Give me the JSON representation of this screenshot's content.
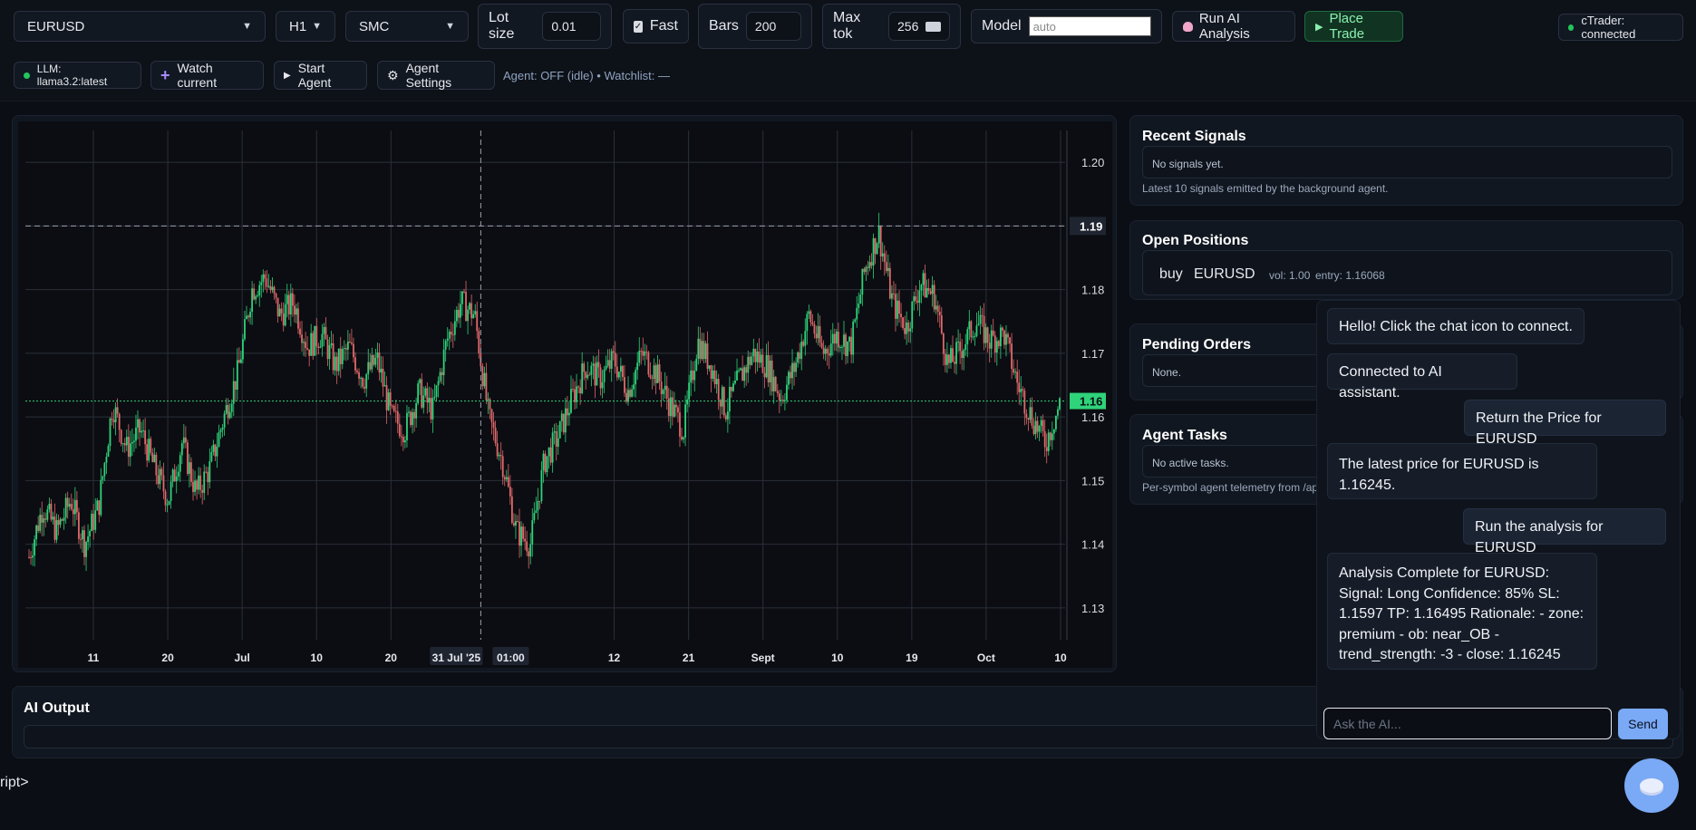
{
  "toolbar": {
    "symbol": "EURUSD",
    "timeframe": "H1",
    "strategy": "SMC",
    "lot_size_label": "Lot size",
    "lot_size_value": "0.01",
    "fast_label": "Fast",
    "bars_label": "Bars",
    "bars_value": "200",
    "max_tok_label": "Max tok",
    "max_tok_value": "256",
    "model_label": "Model",
    "model_placeholder": "auto",
    "run_ai_label": "Run AI Analysis",
    "place_trade_label": "Place Trade",
    "connection_status": "cTrader: connected"
  },
  "toolbar2": {
    "llm_label": "LLM: llama3.2:latest",
    "watch_label": "Watch current",
    "start_agent_label": "Start Agent",
    "agent_settings_label": "Agent Settings",
    "agent_status": "Agent: OFF (idle) • Watchlist: —"
  },
  "chart_data": {
    "type": "candlestick",
    "symbol": "EURUSD",
    "y_ticks": [
      "1.20",
      "1.19",
      "1.18",
      "1.17",
      "1.16",
      "1.15",
      "1.14",
      "1.13"
    ],
    "x_ticks": [
      "11",
      "20",
      "Jul",
      "10",
      "20",
      "31 Jul '25",
      "01:00",
      "12",
      "21",
      "Sept",
      "10",
      "19",
      "Oct",
      "10"
    ],
    "ylim": [
      1.125,
      1.205
    ],
    "crosshair_price": "1.19",
    "last_price_label": "1.16",
    "last_price": 1.1625,
    "close_path": [
      1.138,
      1.146,
      1.142,
      1.147,
      1.14,
      1.146,
      1.162,
      1.155,
      1.158,
      1.152,
      1.147,
      1.156,
      1.148,
      1.152,
      1.16,
      1.167,
      1.18,
      1.182,
      1.176,
      1.178,
      1.171,
      1.173,
      1.168,
      1.171,
      1.166,
      1.169,
      1.16,
      1.158,
      1.164,
      1.161,
      1.172,
      1.178,
      1.176,
      1.16,
      1.153,
      1.142,
      1.14,
      1.153,
      1.157,
      1.163,
      1.168,
      1.166,
      1.169,
      1.164,
      1.17,
      1.167,
      1.162,
      1.158,
      1.172,
      1.168,
      1.161,
      1.166,
      1.17,
      1.168,
      1.163,
      1.168,
      1.176,
      1.17,
      1.173,
      1.171,
      1.183,
      1.189,
      1.178,
      1.174,
      1.181,
      1.179,
      1.168,
      1.171,
      1.175,
      1.172,
      1.173,
      1.165,
      1.16,
      1.156,
      1.162
    ]
  },
  "signals": {
    "title": "Recent Signals",
    "empty": "No signals yet.",
    "note": "Latest 10 signals emitted by the background agent."
  },
  "positions": {
    "title": "Open Positions",
    "items": [
      {
        "side": "buy",
        "symbol": "EURUSD",
        "vol": "vol: 1.00",
        "entry": "entry: 1.16068"
      }
    ]
  },
  "pending": {
    "title": "Pending Orders",
    "empty": "None."
  },
  "agent_tasks": {
    "title": "Agent Tasks",
    "empty": "No active tasks.",
    "note": "Per-symbol agent telemetry from /ap"
  },
  "ai_output": {
    "title": "AI Output"
  },
  "chat": {
    "messages": [
      {
        "role": "assistant",
        "text": "Hello! Click the chat icon to connect."
      },
      {
        "role": "assistant",
        "text": "Connected to AI assistant."
      },
      {
        "role": "user",
        "text": "Return the Price for EURUSD"
      },
      {
        "role": "assistant",
        "text": "The latest price for EURUSD is 1.16245."
      },
      {
        "role": "user",
        "text": "Run the analysis for EURUSD"
      },
      {
        "role": "assistant",
        "text": "Analysis Complete for EURUSD: Signal: Long Confidence: 85% SL: 1.1597 TP: 1.16495 Rationale: - zone: premium - ob: near_OB - trend_strength: -3 - close: 1.16245"
      }
    ],
    "input_placeholder": "Ask the AI...",
    "send_label": "Send"
  },
  "stray_text": "ript>"
}
